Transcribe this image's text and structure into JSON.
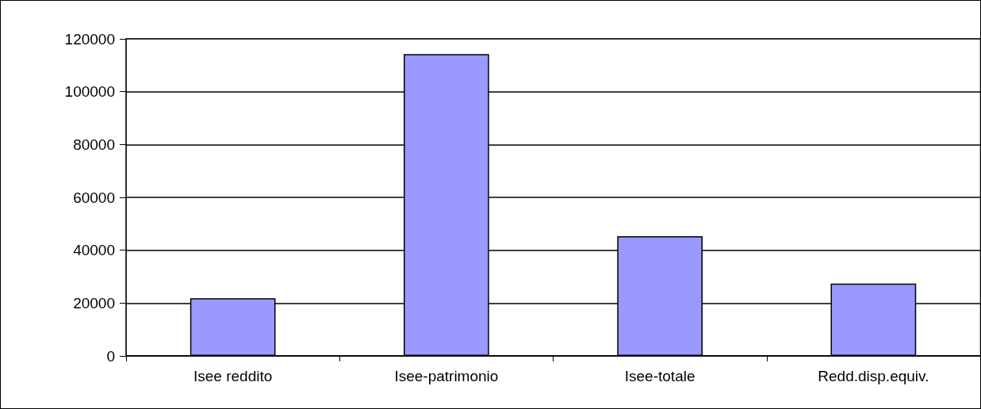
{
  "chart_data": {
    "type": "bar",
    "categories": [
      "Isee reddito",
      "Isee-patrimonio",
      "Isee-totale",
      "Redd.disp.equiv."
    ],
    "values": [
      21800,
      114200,
      45300,
      27400
    ],
    "color": "#9999ff",
    "ylim": [
      0,
      120000
    ],
    "yticks": [
      0,
      20000,
      40000,
      60000,
      80000,
      100000,
      120000
    ],
    "grid": "y"
  }
}
